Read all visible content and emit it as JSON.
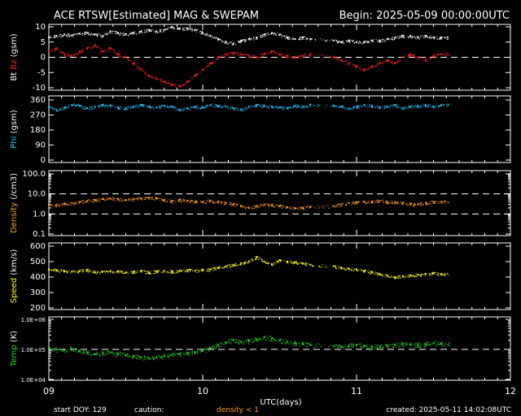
{
  "header": {
    "title": "ACE RTSW[Estimated] MAG & SWEPAM",
    "begin": "Begin: 2025-05-09 00:00:00UTC"
  },
  "footer": {
    "start_doy": "start DOY: 129",
    "caution": "caution:",
    "density_note": "density < 1",
    "created": "created: 2025-05-11 14:02:08UTC"
  },
  "colors": {
    "bt": "#ffffff",
    "bz": "#ff2020",
    "phi": "#20c8ff",
    "density": "#ff9a20",
    "speed": "#ffff20",
    "temp": "#20e020",
    "frame": "#ffffff",
    "caution_text": "#ff9a20"
  },
  "chart_data": {
    "type": "scatter",
    "x_axis": {
      "label": "UTC(days)",
      "range": [
        9,
        12
      ],
      "ticks": [
        9,
        10,
        11,
        12
      ],
      "tick_labels": [
        "09",
        "10",
        "11",
        "12"
      ]
    },
    "panels": [
      {
        "id": "mag",
        "ylabel_parts": [
          "Bt",
          "Bz",
          "(gsm)"
        ],
        "ylim": [
          -10,
          10
        ],
        "scale": "linear",
        "ticks": [
          -10,
          -5,
          0,
          5,
          10
        ],
        "tick_labels": [
          "-10",
          "-5",
          "0",
          "5",
          "10"
        ],
        "ref_lines": [
          0
        ],
        "series": [
          {
            "name": "Bt",
            "color": "#ffffff",
            "x": [
              9.0,
              9.05,
              9.1,
              9.15,
              9.2,
              9.25,
              9.3,
              9.35,
              9.4,
              9.45,
              9.5,
              9.55,
              9.6,
              9.65,
              9.7,
              9.75,
              9.8,
              9.85,
              9.9,
              9.95,
              10.0,
              10.05,
              10.1,
              10.15,
              10.2,
              10.25,
              10.3,
              10.35,
              10.4,
              10.45,
              10.5,
              10.55,
              10.6,
              10.65,
              10.7,
              10.85,
              10.9,
              10.95,
              11.0,
              11.05,
              11.1,
              11.15,
              11.2,
              11.25,
              11.3,
              11.35,
              11.4,
              11.45,
              11.5,
              11.55
            ],
            "y": [
              6.5,
              7.0,
              7.5,
              7.2,
              7.8,
              8.0,
              7.5,
              7.0,
              8.5,
              8.0,
              7.5,
              8.0,
              8.5,
              9.0,
              8.5,
              9.0,
              10.0,
              9.5,
              9.5,
              9.0,
              8.0,
              7.0,
              6.0,
              5.0,
              4.5,
              5.5,
              6.0,
              6.5,
              7.5,
              8.0,
              7.5,
              6.5,
              6.0,
              6.5,
              6.0,
              5.5,
              5.0,
              5.5,
              5.0,
              5.0,
              5.5,
              5.5,
              6.0,
              6.5,
              7.0,
              7.0,
              6.5,
              7.0,
              6.5,
              6.5
            ]
          },
          {
            "name": "Bz",
            "color": "#ff2020",
            "x": [
              9.0,
              9.05,
              9.1,
              9.15,
              9.2,
              9.25,
              9.3,
              9.35,
              9.4,
              9.45,
              9.5,
              9.55,
              9.6,
              9.65,
              9.7,
              9.75,
              9.8,
              9.85,
              9.9,
              9.95,
              10.0,
              10.05,
              10.1,
              10.15,
              10.2,
              10.25,
              10.3,
              10.35,
              10.4,
              10.45,
              10.5,
              10.55,
              10.6,
              10.65,
              10.7,
              10.85,
              10.9,
              10.95,
              11.0,
              11.05,
              11.1,
              11.15,
              11.2,
              11.25,
              11.3,
              11.35,
              11.4,
              11.45,
              11.5,
              11.55
            ],
            "y": [
              2.0,
              3.0,
              1.0,
              0.5,
              2.0,
              3.0,
              4.0,
              2.0,
              3.0,
              1.0,
              0.0,
              -2.0,
              -4.0,
              -6.0,
              -7.0,
              -8.0,
              -9.0,
              -9.5,
              -8.0,
              -6.0,
              -4.0,
              -2.0,
              0.0,
              1.0,
              1.5,
              1.0,
              0.5,
              0.0,
              1.0,
              2.0,
              1.0,
              0.5,
              0.0,
              0.5,
              1.0,
              0.0,
              -1.0,
              -2.0,
              -3.0,
              -4.0,
              -3.0,
              -2.0,
              -1.0,
              -2.0,
              0.0,
              1.0,
              0.0,
              -1.0,
              0.5,
              1.0
            ]
          }
        ]
      },
      {
        "id": "phi",
        "ylabel_parts": [
          "Phi",
          "(gsm)"
        ],
        "ylim": [
          0,
          360
        ],
        "scale": "linear",
        "ticks": [
          0,
          90,
          180,
          270,
          360
        ],
        "tick_labels": [
          "0",
          "90",
          "180",
          "270",
          "360"
        ],
        "ref_lines": [],
        "series": [
          {
            "name": "Phi",
            "color": "#20c8ff",
            "x": [
              9.0,
              9.05,
              9.1,
              9.15,
              9.2,
              9.25,
              9.3,
              9.35,
              9.4,
              9.45,
              9.5,
              9.55,
              9.6,
              9.65,
              9.7,
              9.75,
              9.8,
              9.85,
              9.9,
              9.95,
              10.0,
              10.05,
              10.1,
              10.15,
              10.2,
              10.25,
              10.3,
              10.35,
              10.4,
              10.45,
              10.5,
              10.55,
              10.6,
              10.65,
              10.7,
              10.85,
              10.9,
              10.95,
              11.0,
              11.05,
              11.1,
              11.15,
              11.2,
              11.25,
              11.3,
              11.35,
              11.4,
              11.45,
              11.5,
              11.55
            ],
            "y": [
              320,
              300,
              315,
              330,
              325,
              310,
              320,
              330,
              325,
              315,
              310,
              320,
              330,
              320,
              315,
              325,
              320,
              300,
              310,
              320,
              315,
              330,
              325,
              320,
              310,
              300,
              320,
              330,
              325,
              320,
              315,
              310,
              325,
              320,
              330,
              325,
              320,
              310,
              320,
              330,
              325,
              315,
              320,
              330,
              310,
              320,
              325,
              330,
              320,
              330
            ]
          }
        ]
      },
      {
        "id": "density",
        "ylabel_parts": [
          "Density",
          "(/cm3)"
        ],
        "ylim": [
          0.1,
          100
        ],
        "scale": "log",
        "ticks": [
          0.1,
          1,
          10,
          100
        ],
        "tick_labels": [
          "0.1",
          "1.0",
          "10.0",
          "100.0"
        ],
        "ref_lines": [
          1,
          10
        ],
        "series": [
          {
            "name": "Density",
            "color": "#ff9a20",
            "x": [
              9.0,
              9.05,
              9.1,
              9.15,
              9.2,
              9.25,
              9.3,
              9.35,
              9.4,
              9.45,
              9.5,
              9.55,
              9.6,
              9.65,
              9.7,
              9.75,
              9.8,
              9.85,
              9.9,
              9.95,
              10.0,
              10.05,
              10.1,
              10.15,
              10.2,
              10.25,
              10.3,
              10.35,
              10.4,
              10.45,
              10.5,
              10.55,
              10.6,
              10.65,
              10.7,
              10.85,
              10.9,
              10.95,
              11.0,
              11.05,
              11.1,
              11.15,
              11.2,
              11.25,
              11.3,
              11.35,
              11.4,
              11.45,
              11.5,
              11.55
            ],
            "y": [
              3.0,
              2.8,
              3.2,
              3.5,
              4.0,
              4.5,
              5.0,
              5.5,
              6.0,
              5.5,
              5.0,
              5.5,
              6.0,
              6.5,
              6.0,
              5.0,
              4.5,
              5.0,
              4.5,
              4.0,
              4.0,
              4.5,
              4.0,
              3.5,
              3.0,
              2.5,
              2.0,
              2.5,
              3.0,
              2.8,
              2.5,
              2.2,
              2.0,
              2.0,
              2.2,
              2.5,
              3.0,
              3.5,
              3.8,
              4.0,
              4.2,
              4.5,
              4.0,
              3.8,
              3.5,
              3.2,
              3.0,
              3.5,
              4.0,
              4.0
            ]
          }
        ]
      },
      {
        "id": "speed",
        "ylabel_parts": [
          "Speed",
          "(km/s)"
        ],
        "ylim": [
          200,
          600
        ],
        "scale": "linear",
        "ticks": [
          200,
          300,
          400,
          500,
          600
        ],
        "tick_labels": [
          "200",
          "300",
          "400",
          "500",
          "600"
        ],
        "ref_lines": [],
        "series": [
          {
            "name": "Speed",
            "color": "#ffff20",
            "x": [
              9.0,
              9.05,
              9.1,
              9.15,
              9.2,
              9.25,
              9.3,
              9.35,
              9.4,
              9.45,
              9.5,
              9.55,
              9.6,
              9.65,
              9.7,
              9.75,
              9.8,
              9.85,
              9.9,
              9.95,
              10.0,
              10.05,
              10.1,
              10.15,
              10.2,
              10.25,
              10.3,
              10.35,
              10.4,
              10.45,
              10.5,
              10.55,
              10.6,
              10.65,
              10.7,
              10.85,
              10.9,
              10.95,
              11.0,
              11.05,
              11.1,
              11.15,
              11.2,
              11.25,
              11.3,
              11.35,
              11.4,
              11.45,
              11.5,
              11.55
            ],
            "y": [
              450,
              445,
              440,
              435,
              440,
              445,
              430,
              435,
              440,
              435,
              430,
              435,
              440,
              430,
              435,
              440,
              435,
              440,
              445,
              440,
              445,
              450,
              460,
              470,
              480,
              490,
              500,
              530,
              500,
              480,
              510,
              500,
              495,
              490,
              480,
              470,
              460,
              455,
              450,
              440,
              430,
              420,
              410,
              400,
              405,
              410,
              415,
              420,
              425,
              420
            ]
          }
        ]
      },
      {
        "id": "temp",
        "ylabel_parts": [
          "Temp",
          "(K)"
        ],
        "ylim": [
          10000,
          1000000
        ],
        "scale": "log",
        "ticks": [
          10000,
          100000,
          1000000
        ],
        "tick_labels": [
          "1.0E+04",
          "1.0E+05",
          "1.0E+06"
        ],
        "ref_lines": [
          100000
        ],
        "series": [
          {
            "name": "Temp",
            "color": "#20e020",
            "x": [
              9.0,
              9.05,
              9.1,
              9.15,
              9.2,
              9.25,
              9.3,
              9.35,
              9.4,
              9.45,
              9.5,
              9.55,
              9.6,
              9.65,
              9.7,
              9.75,
              9.8,
              9.85,
              9.9,
              9.95,
              10.0,
              10.05,
              10.1,
              10.15,
              10.2,
              10.25,
              10.3,
              10.35,
              10.4,
              10.45,
              10.5,
              10.55,
              10.6,
              10.65,
              10.7,
              10.85,
              10.9,
              10.95,
              11.0,
              11.05,
              11.1,
              11.15,
              11.2,
              11.25,
              11.3,
              11.35,
              11.4,
              11.45,
              11.5,
              11.55
            ],
            "y": [
              110000,
              100000,
              95000,
              105000,
              90000,
              80000,
              70000,
              75000,
              80000,
              70000,
              65000,
              60000,
              55000,
              50000,
              55000,
              60000,
              65000,
              70000,
              75000,
              80000,
              90000,
              110000,
              140000,
              170000,
              200000,
              180000,
              190000,
              220000,
              250000,
              230000,
              200000,
              180000,
              160000,
              150000,
              140000,
              130000,
              120000,
              130000,
              140000,
              130000,
              120000,
              125000,
              130000,
              140000,
              150000,
              145000,
              140000,
              150000,
              160000,
              155000
            ]
          }
        ]
      }
    ]
  }
}
